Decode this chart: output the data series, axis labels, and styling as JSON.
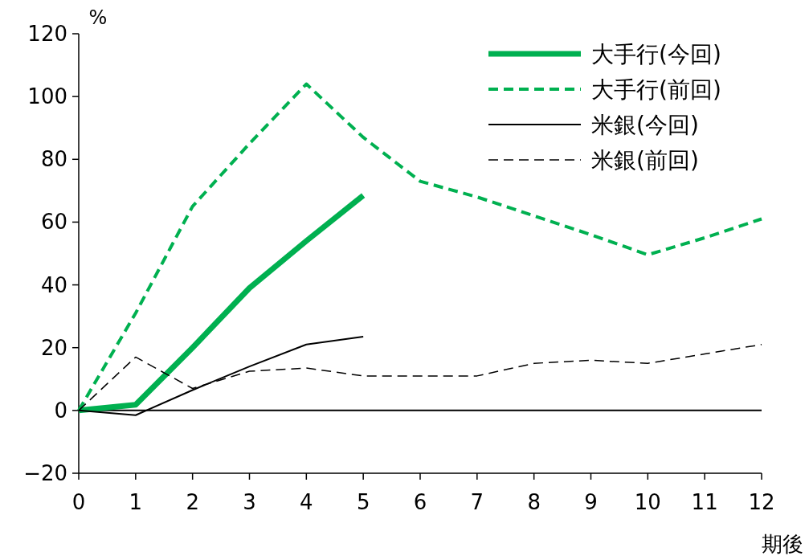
{
  "chart_data": {
    "type": "line",
    "ylabel": "%",
    "xlabel": "期後",
    "x": [
      0,
      1,
      2,
      3,
      4,
      5,
      6,
      7,
      8,
      9,
      10,
      11,
      12
    ],
    "xlim": [
      0,
      12
    ],
    "xticks": [
      0,
      1,
      2,
      3,
      4,
      5,
      6,
      7,
      8,
      9,
      10,
      11,
      12
    ],
    "ylim": [
      -20,
      120
    ],
    "yticks": [
      {
        "value": -20,
        "label": "−20"
      },
      0,
      20,
      40,
      60,
      80,
      100,
      120
    ],
    "grid": false,
    "legend": "top right",
    "ref_lines": [
      {
        "axis": "y",
        "value": 0,
        "color": "#000000",
        "line_style": "solid"
      }
    ],
    "series": [
      {
        "name": "大手行(今回)",
        "color": "#00b050",
        "line_style": "solid",
        "values": [
          0,
          1.8,
          20,
          39,
          54,
          68.5,
          null,
          null,
          null,
          null,
          null,
          null,
          null
        ]
      },
      {
        "name": "大手行(前回)",
        "color": "#00b050",
        "line_style": "dashed",
        "values": [
          0,
          31,
          65,
          85,
          104,
          87,
          73,
          68,
          62,
          56,
          49.6,
          55,
          61
        ]
      },
      {
        "name": "米銀(今回)",
        "color": "#000000",
        "line_style": "solid",
        "values": [
          0,
          -1.5,
          6.5,
          14,
          21,
          23.5,
          null,
          null,
          null,
          null,
          null,
          null,
          null
        ]
      },
      {
        "name": "米銀(前回)",
        "color": "#000000",
        "line_style": "dashed",
        "values": [
          0,
          17,
          7,
          12.5,
          13.5,
          11,
          11,
          11,
          15,
          16,
          15,
          18,
          21
        ]
      }
    ]
  }
}
